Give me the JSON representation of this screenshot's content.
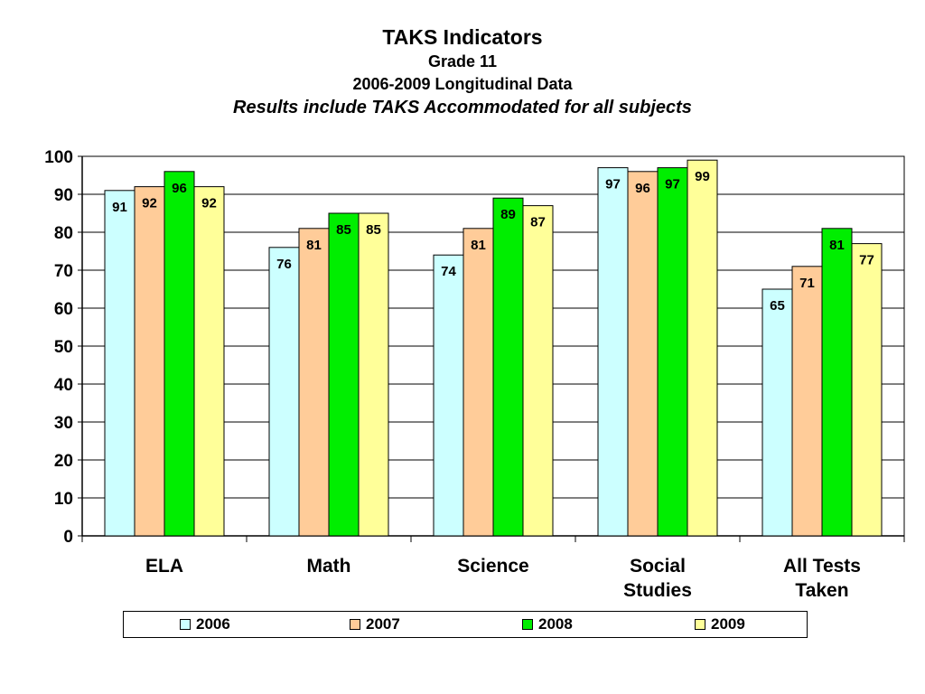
{
  "chart_data": {
    "type": "bar",
    "title": "TAKS Indicators",
    "subtitles": [
      "Grade 11",
      "2006-2009 Longitudinal Data",
      "Results include TAKS Accommodated for all subjects"
    ],
    "categories": [
      [
        "ELA"
      ],
      [
        "Math"
      ],
      [
        "Science"
      ],
      [
        "Social",
        "Studies"
      ],
      [
        "All Tests",
        "Taken"
      ]
    ],
    "series": [
      {
        "name": "2006",
        "color": "#ccffff",
        "values": [
          91,
          76,
          74,
          97,
          65
        ]
      },
      {
        "name": "2007",
        "color": "#ffcc99",
        "values": [
          92,
          81,
          81,
          96,
          71
        ]
      },
      {
        "name": "2008",
        "color": "#00ee00",
        "values": [
          96,
          85,
          89,
          97,
          81
        ]
      },
      {
        "name": "2009",
        "color": "#ffff99",
        "values": [
          92,
          85,
          87,
          99,
          77
        ]
      }
    ],
    "yticks": [
      0,
      10,
      20,
      30,
      40,
      50,
      60,
      70,
      80,
      90,
      100
    ],
    "ylim": [
      0,
      100
    ],
    "grid": true,
    "legend_position": "bottom"
  }
}
